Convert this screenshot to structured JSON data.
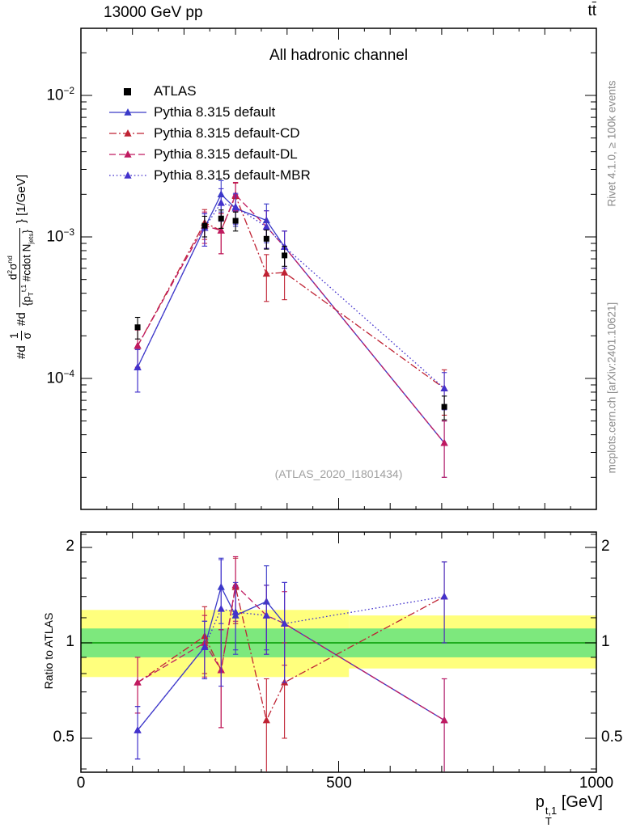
{
  "header": {
    "left": "13000 GeV pp",
    "right_t": "t",
    "right_tbar": "t",
    "right_full": "tt̄"
  },
  "side_notes": {
    "right_top": "Rivet 4.1.0, ≥ 100k events",
    "right_bottom": "mcplots.cern.ch [arXiv:2401.10621]"
  },
  "main_panel": {
    "title": "All hadronic channel",
    "watermark": "(ATLAS_2020_I1801434)",
    "ylabel": {
      "t1": "#d",
      "f1n": "1",
      "f1d": "σ",
      "t2": "#d",
      "f2n_a": "d",
      "f2n_sup": "2",
      "f2n_b": "σ",
      "f2n_sup2": "nd",
      "f2d_a": "{p",
      "f2d_sub": "T",
      "f2d_sup": "t,1",
      "f2d_b": " #cdot N",
      "f2d_sub2": "jets",
      "f2d_c": "}",
      "suffix": "} [1/GeV]"
    }
  },
  "yaxis_ticks": [
    {
      "base": "10",
      "exp": "−2"
    },
    {
      "base": "10",
      "exp": "−3"
    },
    {
      "base": "10",
      "exp": "−4"
    }
  ],
  "ratio_panel": {
    "ylabel": "Ratio to ATLAS",
    "tick_labels": [
      "2",
      "1",
      "0.5"
    ]
  },
  "xaxis": {
    "tick_labels": [
      "0",
      "500",
      "1000"
    ],
    "label_p": "p",
    "label_sup": "t,1",
    "label_sub": "T",
    "label_unit": "[GeV]"
  },
  "colors": {
    "frame": "#000000",
    "band_yellow": "#ffff7d",
    "band_green": "#7de87d",
    "band_center_line": "#009900",
    "note_gray": "#8c8c8c",
    "watermark_gray": "#a0a0a0"
  },
  "chart_data": {
    "type": "line",
    "subtype": "errorbar-with-ratio-panel",
    "title": "All hadronic channel",
    "xlabel": "p_T^{t,1} [GeV]",
    "ylabel": "1/σ d²σ/d{p_T^{t,1} #cdot N_jets} [1/GeV]",
    "ratio_ylabel": "Ratio to ATLAS",
    "legend_position": "top-left",
    "x_range": [
      0,
      1000
    ],
    "x_major_ticks": [
      0,
      500,
      1000
    ],
    "main_y_scale": "log",
    "main_y_major_ticks": [
      0.01,
      0.001,
      0.0001
    ],
    "ratio_y_scale": "log",
    "ratio_y_ticks": [
      0.5,
      1,
      2
    ],
    "x": [
      110,
      240,
      272,
      300,
      360,
      395,
      705
    ],
    "atlas": {
      "name": "ATLAS",
      "color": "#000000",
      "marker": "square",
      "y": [
        0.00023,
        0.0012,
        0.00135,
        0.0013,
        0.00097,
        0.00074,
        6.3e-05
      ],
      "err": [
        4e-05,
        0.0002,
        0.0002,
        0.0002,
        0.00015,
        0.00012,
        1.2e-05
      ]
    },
    "series": [
      {
        "name": "Pythia 8.315 default",
        "color": "#3a3ac8",
        "dash": "solid",
        "marker": "triangle",
        "y": [
          0.00012,
          0.00116,
          0.002,
          0.00159,
          0.00131,
          0.00085,
          3.5e-05
        ],
        "yerr": [
          4e-05,
          0.0003,
          0.0005,
          0.0004,
          0.0004,
          0.00025,
          1.5e-05
        ],
        "ratio": [
          0.53,
          0.97,
          1.5,
          1.22,
          1.35,
          1.15,
          0.57
        ],
        "ratio_err": [
          0.1,
          0.2,
          0.35,
          0.3,
          0.4,
          0.4,
          0.2
        ]
      },
      {
        "name": "Pythia 8.315 default-CD",
        "color": "#bf2233",
        "dash": "dashdot",
        "marker": "triangle",
        "y": [
          0.00017,
          0.00126,
          0.00111,
          0.00195,
          0.00055,
          0.00056,
          8.5e-05
        ],
        "yerr": [
          5e-05,
          0.0003,
          0.00035,
          0.00045,
          0.0002,
          0.0002,
          3e-05
        ],
        "ratio": [
          0.75,
          1.05,
          0.82,
          1.5,
          0.57,
          0.75,
          1.4
        ],
        "ratio_err": [
          0.15,
          0.25,
          0.28,
          0.35,
          0.2,
          0.25,
          0.4
        ]
      },
      {
        "name": "Pythia 8.315 default-DL",
        "color": "#c01a60",
        "dash": "dashed",
        "marker": "triangle",
        "y": [
          0.00017,
          0.0012,
          0.00111,
          0.00198,
          0.00118,
          0.00085,
          3.5e-05
        ],
        "yerr": [
          5e-05,
          0.0003,
          0.00035,
          0.00045,
          0.00035,
          0.00025,
          1.5e-05
        ],
        "ratio": [
          0.75,
          1.0,
          0.82,
          1.52,
          1.22,
          1.15,
          0.57
        ],
        "ratio_err": [
          0.15,
          0.22,
          0.28,
          0.35,
          0.3,
          0.3,
          0.2
        ]
      },
      {
        "name": "Pythia 8.315 default-MBR",
        "color": "#4332cc",
        "dash": "dotted",
        "marker": "triangle",
        "y": [
          0.00012,
          0.00116,
          0.00174,
          0.00163,
          0.00118,
          0.00085,
          8.5e-05
        ],
        "yerr": [
          4e-05,
          0.0003,
          0.00045,
          0.0004,
          0.00035,
          0.00025,
          2.5e-05
        ],
        "ratio": [
          0.53,
          0.97,
          1.28,
          1.25,
          1.22,
          1.15,
          1.4
        ],
        "ratio_err": [
          0.1,
          0.2,
          0.55,
          0.3,
          0.3,
          0.4,
          0.4
        ]
      }
    ],
    "ratio_bands": {
      "yellow": [
        {
          "x0": 0,
          "x1": 520,
          "lo": 0.78,
          "hi": 1.27
        },
        {
          "x0": 520,
          "x1": 1000,
          "lo": 0.83,
          "hi": 1.22
        }
      ],
      "green": [
        {
          "x0": 0,
          "x1": 1000,
          "lo": 0.9,
          "hi": 1.11
        }
      ],
      "center_line": 1.0
    }
  }
}
